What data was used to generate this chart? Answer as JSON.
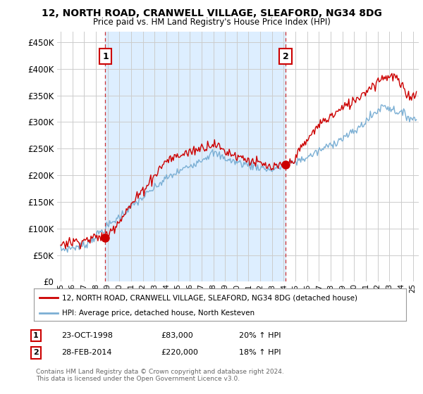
{
  "title": "12, NORTH ROAD, CRANWELL VILLAGE, SLEAFORD, NG34 8DG",
  "subtitle": "Price paid vs. HM Land Registry's House Price Index (HPI)",
  "ylabel_ticks": [
    "£0",
    "£50K",
    "£100K",
    "£150K",
    "£200K",
    "£250K",
    "£300K",
    "£350K",
    "£400K",
    "£450K"
  ],
  "ytick_values": [
    0,
    50000,
    100000,
    150000,
    200000,
    250000,
    300000,
    350000,
    400000,
    450000
  ],
  "ylim": [
    0,
    470000
  ],
  "xlim_start": 1994.7,
  "xlim_end": 2025.5,
  "marker1_x": 1998.81,
  "marker1_y": 83000,
  "marker2_x": 2014.16,
  "marker2_y": 220000,
  "vline1_x": 1998.81,
  "vline2_x": 2014.16,
  "red_line_color": "#cc0000",
  "blue_line_color": "#7bafd4",
  "vline_color": "#cc3333",
  "shade_color": "#ddeeff",
  "grid_color": "#cccccc",
  "legend_label_red": "12, NORTH ROAD, CRANWELL VILLAGE, SLEAFORD, NG34 8DG (detached house)",
  "legend_label_blue": "HPI: Average price, detached house, North Kesteven",
  "annotation1_label": "1",
  "annotation2_label": "2",
  "footer": "Contains HM Land Registry data © Crown copyright and database right 2024.\nThis data is licensed under the Open Government Licence v3.0.",
  "bg_color": "#ffffff"
}
